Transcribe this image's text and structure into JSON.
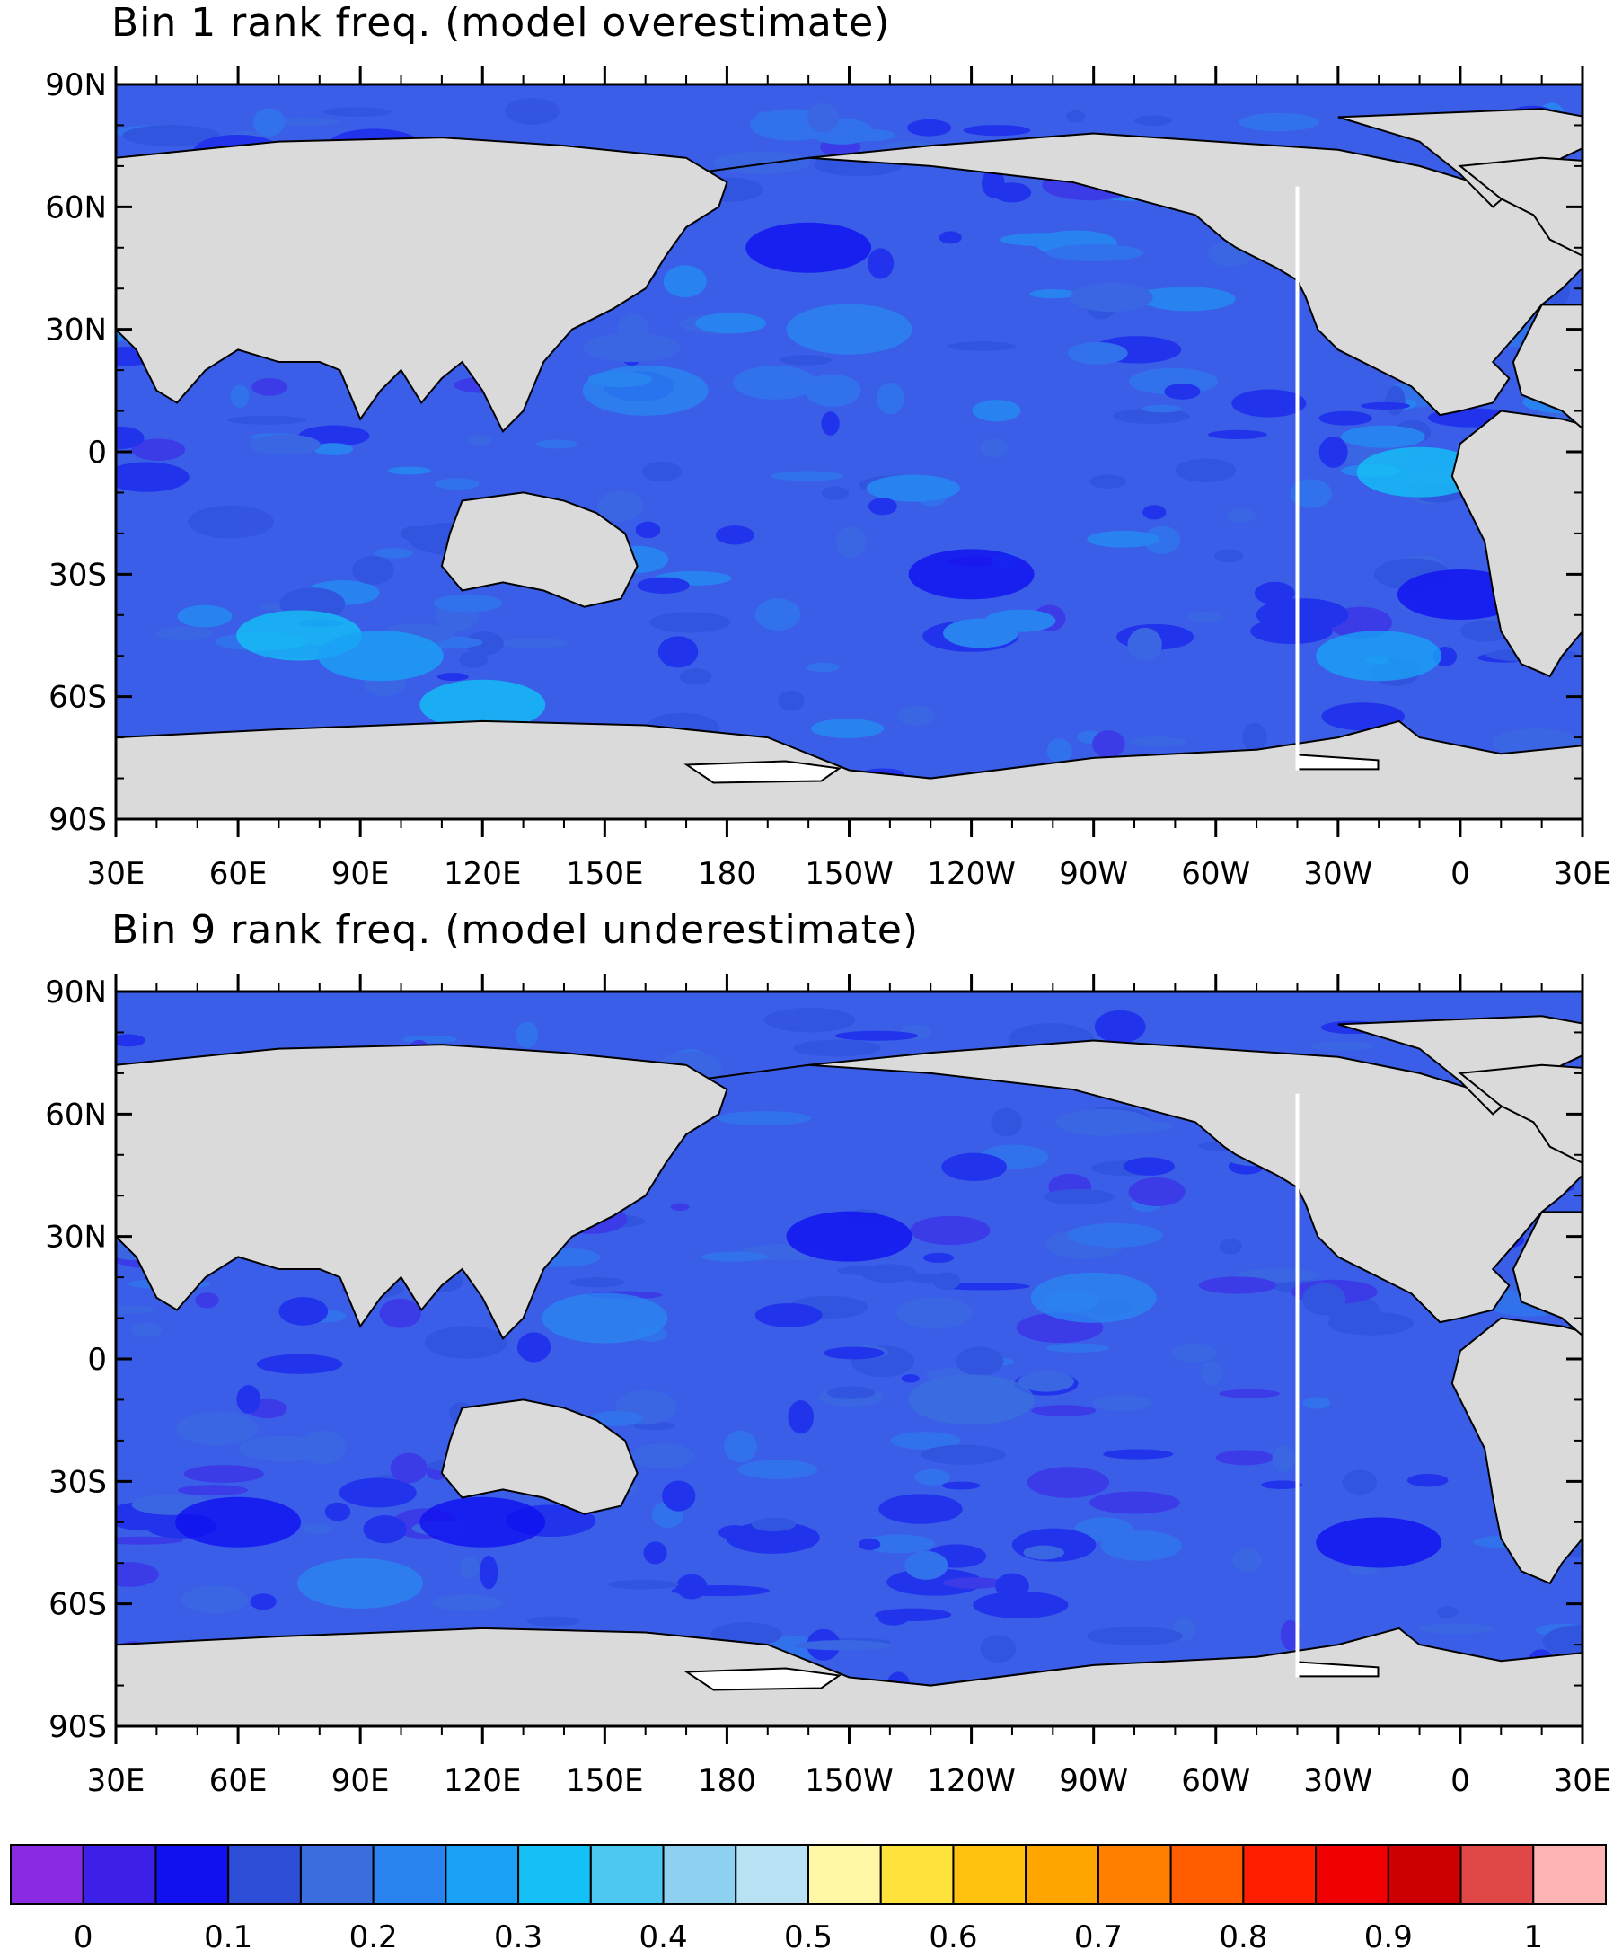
{
  "panels": [
    {
      "title": "Bin 1 rank freq. (model overestimate)",
      "lat_tick_labels": [
        "90N",
        "60N",
        "30N",
        "0",
        "30S",
        "60S",
        "90S"
      ],
      "lon_tick_labels": [
        "30E",
        "60E",
        "90E",
        "120E",
        "150E",
        "180",
        "150W",
        "120W",
        "90W",
        "60W",
        "30W",
        "0",
        "30E"
      ],
      "field_description": "mostly 0.1–0.3 over ocean; lighter 0.3–0.4 patches in Southern Ocean and tropical Atlantic",
      "patches": [
        {
          "lon": 75,
          "lat": -45,
          "value": 0.35
        },
        {
          "lon": 95,
          "lat": -50,
          "value": 0.33
        },
        {
          "lon": 120,
          "lat": -62,
          "value": 0.36
        },
        {
          "lon": -10,
          "lat": -5,
          "value": 0.35
        },
        {
          "lon": -20,
          "lat": -50,
          "value": 0.32
        },
        {
          "lon": 160,
          "lat": 15,
          "value": 0.28
        },
        {
          "lon": -150,
          "lat": 30,
          "value": 0.27
        },
        {
          "lon": -120,
          "lat": -30,
          "value": 0.12
        },
        {
          "lon": -160,
          "lat": 50,
          "value": 0.12
        },
        {
          "lon": 0,
          "lat": -35,
          "value": 0.12
        }
      ]
    },
    {
      "title": "Bin 9 rank freq. (model underestimate)",
      "lat_tick_labels": [
        "90N",
        "60N",
        "30N",
        "0",
        "30S",
        "60S",
        "90S"
      ],
      "lon_tick_labels": [
        "30E",
        "60E",
        "90E",
        "120E",
        "150E",
        "180",
        "150W",
        "120W",
        "90W",
        "60W",
        "30W",
        "0",
        "30E"
      ],
      "field_description": "mostly 0.1–0.25 over ocean; darker band 0.1–0.15 in Southern Ocean",
      "patches": [
        {
          "lon": 60,
          "lat": -40,
          "value": 0.12
        },
        {
          "lon": 120,
          "lat": -40,
          "value": 0.13
        },
        {
          "lon": -150,
          "lat": 30,
          "value": 0.12
        },
        {
          "lon": -90,
          "lat": 15,
          "value": 0.28
        },
        {
          "lon": 150,
          "lat": 10,
          "value": 0.25
        },
        {
          "lon": -20,
          "lat": -45,
          "value": 0.14
        },
        {
          "lon": 90,
          "lat": -55,
          "value": 0.26
        },
        {
          "lon": -120,
          "lat": -10,
          "value": 0.24
        }
      ]
    }
  ],
  "colorbar": {
    "colors": [
      "#8a2be2",
      "#3d20e8",
      "#1010f0",
      "#2d4fd8",
      "#3a6edf",
      "#2a84f0",
      "#1aa0f5",
      "#14c0f5",
      "#4ec8f0",
      "#8ed0ef",
      "#b8e2f4",
      "#fff7a6",
      "#ffe23c",
      "#ffc20e",
      "#ffa500",
      "#ff8000",
      "#ff5c00",
      "#ff1e00",
      "#f00000",
      "#cc0000",
      "#e04848",
      "#ffb4b4"
    ],
    "tick_labels": [
      "0",
      "0.1",
      "0.2",
      "0.3",
      "0.4",
      "0.5",
      "0.6",
      "0.7",
      "0.8",
      "0.9",
      "1"
    ]
  },
  "colors": {
    "land": "#dadada",
    "ocean_base": "#3a5ee8",
    "ice_shelf": "#ffffff",
    "missing_meridian": "#ffffff"
  }
}
